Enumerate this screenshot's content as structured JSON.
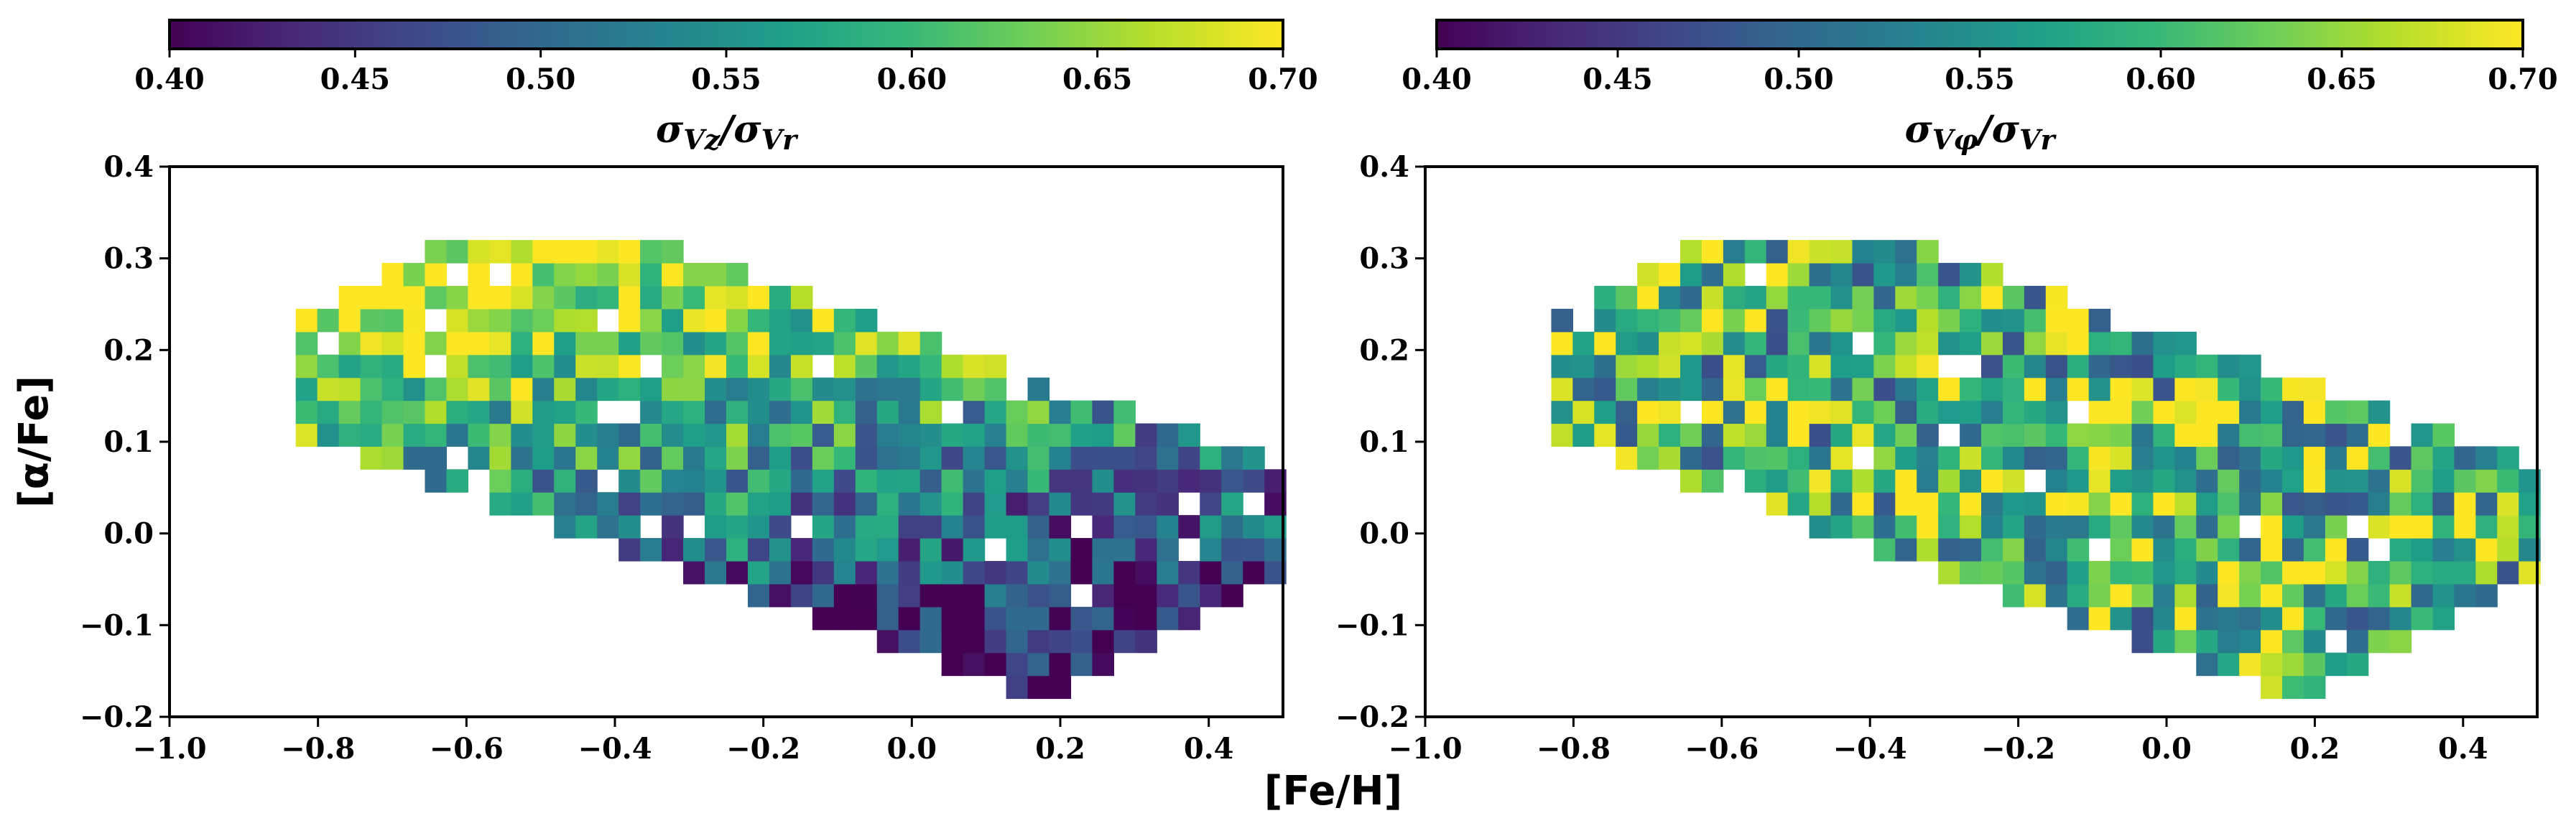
{
  "chart_data": [
    {
      "type": "heatmap",
      "panel": "left",
      "colorbar_label": "σVz/σVr",
      "colorbar_label_main": "σ",
      "colorbar_label_sub1": "Vz",
      "colorbar_label_mid": "/σ",
      "colorbar_label_sub2": "Vr",
      "colorbar_range": [
        0.4,
        0.7
      ],
      "colorbar_ticks": [
        "0.40",
        "0.45",
        "0.50",
        "0.55",
        "0.60",
        "0.65",
        "0.70"
      ],
      "colormap": "viridis",
      "xlim": [
        -1.0,
        0.5
      ],
      "ylim": [
        -0.2,
        0.4
      ],
      "x_ticks": [
        "−1.0",
        "−0.8",
        "−0.6",
        "−0.4",
        "−0.2",
        "0.0",
        "0.2",
        "0.4"
      ],
      "y_ticks": [
        "−0.2",
        "−0.1",
        "0.0",
        "0.1",
        "0.2",
        "0.3",
        "0.4"
      ],
      "ylabel": "[α/Fe]",
      "bin_width_feh": 0.029,
      "bin_height_afe": 0.025,
      "description": "Binned ratio; high (~0.70) values at low [Fe/H] / high [α/Fe], low (~0.45) values at high [Fe/H] / low [α/Fe]"
    },
    {
      "type": "heatmap",
      "panel": "right",
      "colorbar_label": "σVφ/σVr",
      "colorbar_label_main": "σ",
      "colorbar_label_sub1": "Vφ",
      "colorbar_label_mid": "/σ",
      "colorbar_label_sub2": "Vr",
      "colorbar_range": [
        0.4,
        0.7
      ],
      "colorbar_ticks": [
        "0.40",
        "0.45",
        "0.50",
        "0.55",
        "0.60",
        "0.65",
        "0.70"
      ],
      "colormap": "viridis",
      "xlim": [
        -1.0,
        0.5
      ],
      "ylim": [
        -0.2,
        0.4
      ],
      "x_ticks": [
        "−1.0",
        "−0.8",
        "−0.6",
        "−0.4",
        "−0.2",
        "0.0",
        "0.2",
        "0.4"
      ],
      "y_ticks": [
        "−0.2",
        "−0.1",
        "0.0",
        "0.1",
        "0.2",
        "0.3",
        "0.4"
      ],
      "bin_width_feh": 0.029,
      "bin_height_afe": 0.025,
      "description": "Binned ratio mostly 0.55-0.70 across the whole distribution"
    }
  ],
  "shared_xlabel": "[Fe/H]",
  "viridis_stops": [
    "#440154",
    "#482878",
    "#3e4989",
    "#31688e",
    "#26828e",
    "#1f9e89",
    "#35b779",
    "#6ece58",
    "#b5de2b",
    "#fde725"
  ]
}
